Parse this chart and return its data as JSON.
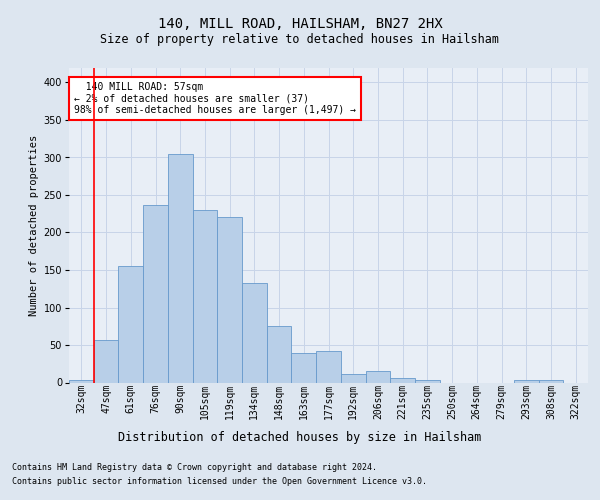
{
  "title": "140, MILL ROAD, HAILSHAM, BN27 2HX",
  "subtitle": "Size of property relative to detached houses in Hailsham",
  "xlabel_bottom": "Distribution of detached houses by size in Hailsham",
  "ylabel": "Number of detached properties",
  "footer1": "Contains HM Land Registry data © Crown copyright and database right 2024.",
  "footer2": "Contains public sector information licensed under the Open Government Licence v3.0.",
  "bar_labels": [
    "32sqm",
    "47sqm",
    "61sqm",
    "76sqm",
    "90sqm",
    "105sqm",
    "119sqm",
    "134sqm",
    "148sqm",
    "163sqm",
    "177sqm",
    "192sqm",
    "206sqm",
    "221sqm",
    "235sqm",
    "250sqm",
    "264sqm",
    "279sqm",
    "293sqm",
    "308sqm",
    "322sqm"
  ],
  "bar_values": [
    3,
    57,
    155,
    237,
    305,
    230,
    220,
    133,
    75,
    40,
    42,
    11,
    16,
    6,
    3,
    0,
    0,
    0,
    4,
    3,
    0
  ],
  "bar_color": "#b8cfe8",
  "bar_edge_color": "#6699cc",
  "annotation_text": "  140 MILL ROAD: 57sqm\n← 2% of detached houses are smaller (37)\n98% of semi-detached houses are larger (1,497) →",
  "annotation_box_color": "white",
  "annotation_box_edge_color": "red",
  "vline_color": "red",
  "vline_xdata": 0.5,
  "ylim": [
    0,
    420
  ],
  "yticks": [
    0,
    50,
    100,
    150,
    200,
    250,
    300,
    350,
    400
  ],
  "grid_color": "#c8d4e8",
  "bg_color": "#dde6f0",
  "plot_bg_color": "#e8eef6",
  "title_fontsize": 10,
  "subtitle_fontsize": 8.5,
  "ylabel_fontsize": 7.5,
  "tick_fontsize": 7,
  "annot_fontsize": 7,
  "footer_fontsize": 6
}
